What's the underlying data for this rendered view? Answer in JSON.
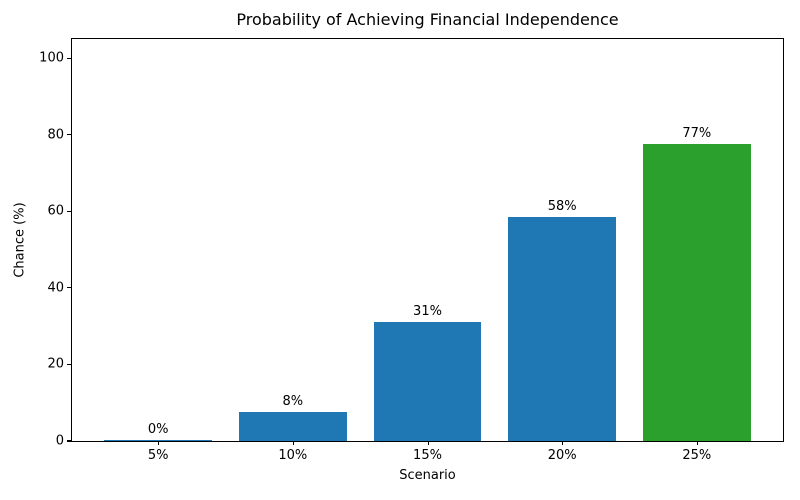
{
  "chart_data": {
    "type": "bar",
    "title": "Probability of Achieving Financial Independence",
    "xlabel": "Scenario",
    "ylabel": "Chance (%)",
    "categories": [
      "5%",
      "10%",
      "15%",
      "20%",
      "25%"
    ],
    "values": [
      0.3,
      7.7,
      31.2,
      58.5,
      77.5
    ],
    "bar_labels": [
      "0%",
      "8%",
      "31%",
      "58%",
      "77%"
    ],
    "bar_colors": [
      "#1f77b4",
      "#1f77b4",
      "#1f77b4",
      "#1f77b4",
      "#2ca02c"
    ],
    "yticks": [
      0,
      20,
      40,
      60,
      80,
      100
    ],
    "ylim": [
      0,
      105
    ],
    "xlim": [
      -0.64,
      4.64
    ],
    "bar_width_units": 0.8,
    "grid": false,
    "legend_position": "none",
    "spine_color": "#000000",
    "background_color": "#ffffff"
  }
}
